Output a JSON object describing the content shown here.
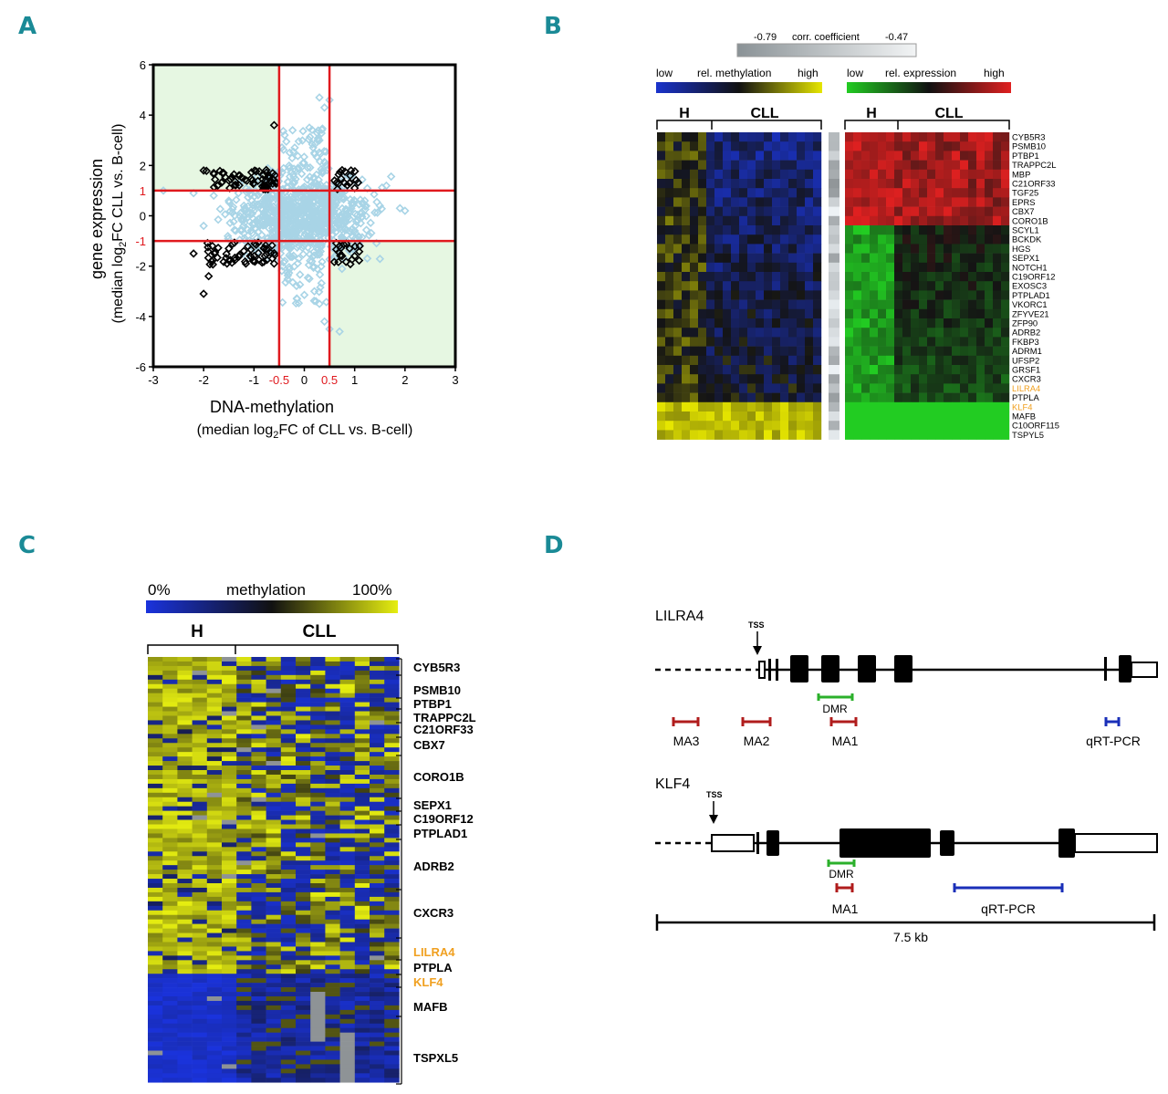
{
  "panels": {
    "a": "A",
    "b": "B",
    "c": "C",
    "d": "D"
  },
  "panel_a": {
    "ylabel_line1": "gene expression",
    "ylabel_line2_pre": "(median log",
    "ylabel_line2_sub": "2",
    "ylabel_line2_post": "FC CLL vs. B-cell)",
    "xlabel_line1": "DNA-methylation",
    "xlabel_line2_pre": "(median log",
    "xlabel_line2_sub": "2",
    "xlabel_line2_post": "FC of CLL vs. B-cell)",
    "x_ticks": [
      "-3",
      "-2",
      "-1",
      "0",
      "1",
      "2",
      "3"
    ],
    "x_ticks_red": [
      "-0.5",
      "0.5"
    ],
    "y_ticks": [
      "6",
      "4",
      "2",
      "0",
      "-2",
      "-4",
      "-6"
    ],
    "y_ticks_red": [
      "1",
      "-1"
    ],
    "colors": {
      "quadrant_fill": "#e6f7e2",
      "threshold_line": "#e0191e",
      "light_points": "#a8d4e6",
      "dark_points": "#000000"
    }
  },
  "chart_data": {
    "type": "scatter",
    "title": "",
    "xlabel": "DNA-methylation (median log2FC of CLL vs. B-cell)",
    "ylabel": "gene expression (median log2FC CLL vs. B-cell)",
    "xlim": [
      -3,
      3
    ],
    "ylim": [
      -6,
      6
    ],
    "thresholds": {
      "x": [
        -0.5,
        0.5
      ],
      "y": [
        -1,
        1
      ]
    },
    "grid": false,
    "series": [
      {
        "color": "#a8d4e6",
        "marker": "diamond-open",
        "points": [
          [
            -2.8,
            1.0
          ],
          [
            -2.2,
            0.9
          ],
          [
            -1.8,
            0.8
          ],
          [
            -1.5,
            0.6
          ],
          [
            -1.2,
            0.4
          ],
          [
            -1.0,
            0.2
          ],
          [
            -0.8,
            0.1
          ],
          [
            -0.6,
            -0.2
          ],
          [
            -0.4,
            0.3
          ],
          [
            -0.2,
            0.5
          ],
          [
            0.0,
            0.2
          ],
          [
            0.2,
            -0.3
          ],
          [
            0.4,
            0.1
          ],
          [
            0.6,
            0.4
          ],
          [
            0.9,
            0.2
          ],
          [
            1.2,
            0.6
          ],
          [
            1.5,
            0.4
          ],
          [
            1.9,
            0.3
          ],
          [
            2.0,
            0.2
          ],
          [
            0.3,
            4.7
          ],
          [
            0.5,
            4.6
          ],
          [
            0.4,
            4.3
          ],
          [
            0.1,
            3.5
          ],
          [
            0.3,
            3.0
          ],
          [
            0.2,
            2.5
          ],
          [
            0.1,
            -2.5
          ],
          [
            0.2,
            -3.0
          ],
          [
            0.3,
            -3.5
          ],
          [
            0.4,
            -4.2
          ],
          [
            0.5,
            -4.5
          ],
          [
            0.7,
            -4.6
          ],
          [
            -0.3,
            -0.8
          ],
          [
            -1.2,
            -0.7
          ],
          [
            -2.0,
            -0.4
          ],
          [
            1.0,
            -0.6
          ]
        ]
      },
      {
        "color": "#000000",
        "marker": "diamond-open",
        "points": [
          [
            -2.0,
            1.8
          ],
          [
            -1.8,
            1.7
          ],
          [
            -1.5,
            1.4
          ],
          [
            -1.3,
            1.6
          ],
          [
            -1.0,
            1.3
          ],
          [
            -0.8,
            1.2
          ],
          [
            -0.6,
            3.6
          ],
          [
            -0.7,
            1.5
          ],
          [
            0.6,
            1.4
          ],
          [
            0.8,
            1.3
          ],
          [
            1.0,
            1.1
          ],
          [
            -1.5,
            -1.3
          ],
          [
            -1.2,
            -1.4
          ],
          [
            -1.0,
            -1.6
          ],
          [
            -0.8,
            -1.3
          ],
          [
            -0.6,
            -1.9
          ],
          [
            -1.9,
            -2.4
          ],
          [
            -2.0,
            -3.1
          ],
          [
            0.7,
            -1.2
          ],
          [
            0.9,
            -1.3
          ],
          [
            1.1,
            -1.2
          ],
          [
            -2.2,
            -1.5
          ]
        ]
      }
    ]
  },
  "panel_b": {
    "corr_left": "-0.79",
    "corr_label": "corr. coefficient",
    "corr_right": "-0.47",
    "meth_low": "low",
    "meth_label": "rel. methylation",
    "meth_high": "high",
    "expr_low": "low",
    "expr_label": "rel. expression",
    "expr_high": "high",
    "group_h": "H",
    "group_cll": "CLL",
    "genes": [
      "CYB5R3",
      "PSMB10",
      "PTBP1",
      "TRAPPC2L",
      "MBP",
      "C21ORF33",
      "TGF25",
      "EPRS",
      "CBX7",
      "CORO1B",
      "SCYL1",
      "BCKDK",
      "HGS",
      "SEPX1",
      "NOTCH1",
      "C19ORF12",
      "EXOSC3",
      "PTPLAD1",
      "VKORC1",
      "ZFYVE21",
      "ZFP90",
      "ADRB2",
      "FKBP3",
      "ADRM1",
      "UFSP2",
      "GRSF1",
      "CXCR3",
      "LILRA4",
      "PTPLA",
      "KLF4",
      "MAFB",
      "C10ORF115",
      "TSPYL5"
    ],
    "highlight_genes": [
      "LILRA4",
      "KLF4"
    ],
    "colors": {
      "highlight": "#f0a020",
      "meth_low": "#1a33cc",
      "meth_high": "#e6e600",
      "expr_low": "#22cc22",
      "expr_high": "#e02020"
    }
  },
  "panel_c": {
    "scale_min": "0%",
    "scale_label": "methylation",
    "scale_max": "100%",
    "group_h": "H",
    "group_cll": "CLL",
    "genes": [
      "CYB5R3",
      "PSMB10",
      "PTBP1",
      "TRAPPC2L",
      "C21ORF33",
      "CBX7",
      "CORO1B",
      "SEPX1",
      "C19ORF12",
      "PTPLAD1",
      "ADRB2",
      "CXCR3",
      "LILRA4",
      "PTPLA",
      "KLF4",
      "MAFB",
      "TSPXL5"
    ],
    "highlight_genes": [
      "LILRA4",
      "KLF4"
    ]
  },
  "panel_d": {
    "gene1": "LILRA4",
    "gene2": "KLF4",
    "tss": "TSS",
    "dmr": "DMR",
    "ma3": "MA3",
    "ma2": "MA2",
    "ma1": "MA1",
    "qrt": "qRT-PCR",
    "scale": "7.5 kb",
    "colors": {
      "ma": "#b01c1c",
      "dmr": "#2bb02b",
      "qrt": "#1a2fb8"
    }
  }
}
